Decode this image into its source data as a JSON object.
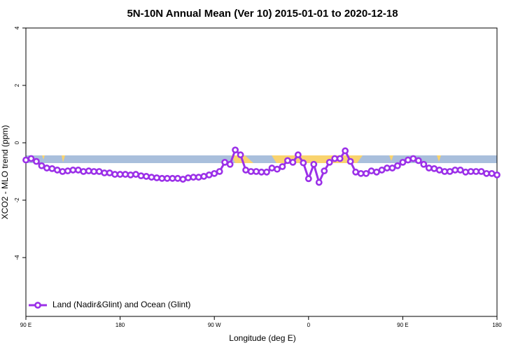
{
  "chart_data": {
    "type": "line",
    "title": "5N-10N Annual Mean (Ver 10)   2015-01-01 to 2020-12-18",
    "x_label": "Longitude (deg E)",
    "y_label": "XCO2 - MLO trend (ppm)",
    "xlim": [
      90,
      540
    ],
    "ylim": [
      -6.05,
      4
    ],
    "xticks": [
      {
        "value": 90,
        "label": "90 E"
      },
      180,
      {
        "value": 270,
        "label": "90 W"
      },
      {
        "value": 360,
        "label": "0"
      },
      {
        "value": 450,
        "label": "90 E"
      },
      {
        "value": 540,
        "label": "180"
      }
    ],
    "yticks": [
      4,
      2,
      0,
      -2,
      -4
    ],
    "legend": "bottom-left",
    "x": [
      90,
      95,
      100,
      105,
      110,
      115,
      120,
      125,
      130,
      135,
      140,
      145,
      150,
      155,
      160,
      165,
      170,
      175,
      180,
      185,
      190,
      195,
      200,
      205,
      210,
      215,
      220,
      225,
      230,
      235,
      240,
      245,
      250,
      255,
      260,
      265,
      270,
      275,
      280,
      285,
      290,
      295,
      300,
      305,
      310,
      315,
      320,
      325,
      330,
      335,
      340,
      345,
      350,
      355,
      360,
      365,
      370,
      375,
      380,
      385,
      390,
      395,
      400,
      405,
      410,
      415,
      420,
      425,
      430,
      435,
      440,
      445,
      450,
      455,
      460,
      465,
      470,
      475,
      480,
      485,
      490,
      495,
      500,
      505,
      510,
      515,
      520,
      525,
      530,
      535,
      540
    ],
    "series": [
      {
        "name": "Land (Nadir&Glint) and Ocean (Glint)",
        "color": "#9b30e8",
        "values": [
          -0.6,
          -0.55,
          -0.65,
          -0.8,
          -0.88,
          -0.9,
          -0.95,
          -1.0,
          -0.98,
          -0.95,
          -0.95,
          -1.0,
          -0.98,
          -1.0,
          -1.0,
          -1.05,
          -1.05,
          -1.1,
          -1.1,
          -1.1,
          -1.12,
          -1.1,
          -1.15,
          -1.17,
          -1.2,
          -1.22,
          -1.24,
          -1.24,
          -1.24,
          -1.24,
          -1.27,
          -1.22,
          -1.2,
          -1.2,
          -1.17,
          -1.12,
          -1.07,
          -1.0,
          -0.68,
          -0.75,
          -0.25,
          -0.42,
          -0.95,
          -1.0,
          -1.0,
          -1.02,
          -1.02,
          -0.88,
          -0.92,
          -0.83,
          -0.62,
          -0.68,
          -0.42,
          -0.7,
          -1.25,
          -0.75,
          -1.38,
          -0.98,
          -0.68,
          -0.55,
          -0.55,
          -0.28,
          -0.65,
          -1.02,
          -1.07,
          -1.07,
          -0.98,
          -1.02,
          -0.95,
          -0.88,
          -0.88,
          -0.8,
          -0.68,
          -0.6,
          -0.55,
          -0.62,
          -0.75,
          -0.88,
          -0.9,
          -0.95,
          -1.0,
          -1.0,
          -0.95,
          -0.95,
          -1.02,
          -1.0,
          -1.0,
          -1.0,
          -1.07,
          -1.07,
          -1.12
        ]
      }
    ]
  }
}
